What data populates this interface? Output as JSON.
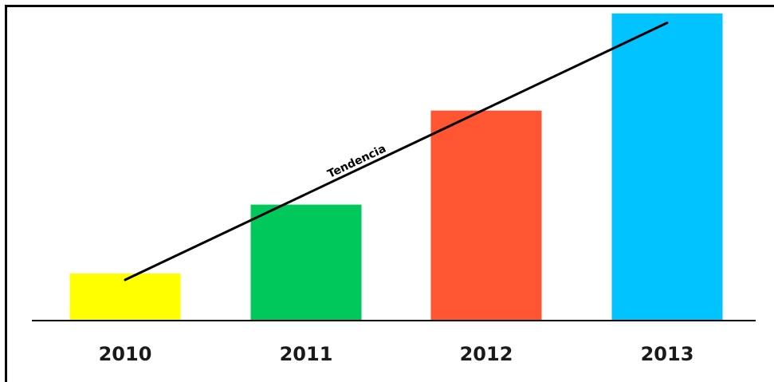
{
  "chart_data": {
    "type": "bar",
    "categories": [
      "2010",
      "2011",
      "2012",
      "2013"
    ],
    "values": [
      1.5,
      3.7,
      6.7,
      9.8
    ],
    "colors": [
      "#FFFF00",
      "#00C85A",
      "#FF5533",
      "#00C3FF"
    ],
    "ylim": [
      0,
      10
    ],
    "grid": false,
    "legend": "none",
    "trend_line": {
      "label": "Tendencia",
      "color": "#000000",
      "start": {
        "category": "2010",
        "value": 1.3
      },
      "end": {
        "category": "2013",
        "value": 9.5
      }
    }
  }
}
